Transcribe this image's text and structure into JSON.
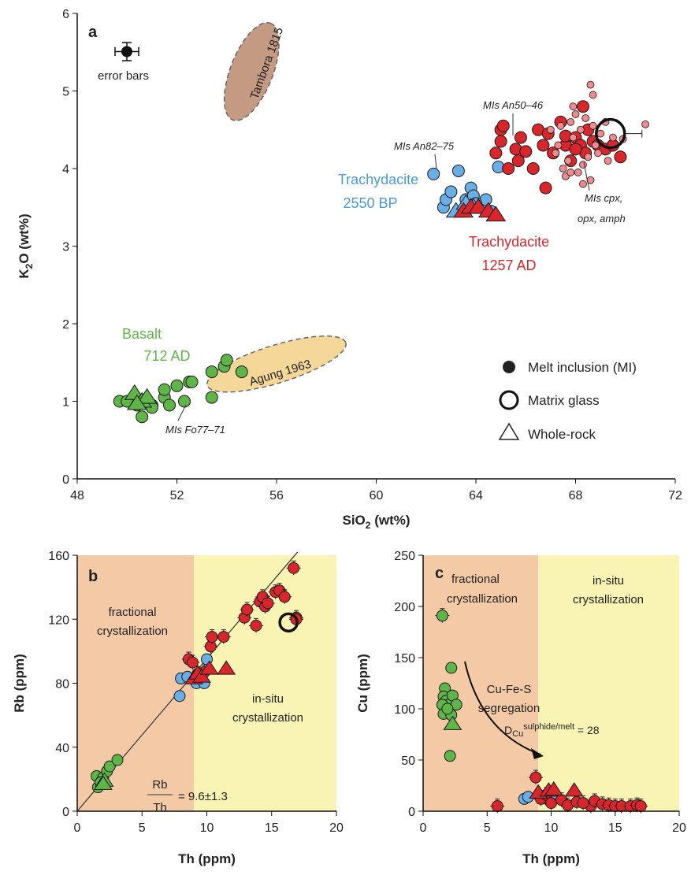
{
  "colors": {
    "basalt": "#5fb548",
    "trachy2550": "#6aaee6",
    "trachy1257": "#d8262c",
    "mi_cpx": "#ef8a8e",
    "tambora": "#c49a82",
    "agung": "#f5d79a",
    "fractional_bg": "#f4c9a6",
    "insitu_bg": "#f9f4b4"
  },
  "chart_data": [
    {
      "panel": "a",
      "type": "scatter",
      "xlabel": "SiO2 (wt%)",
      "ylabel": "K2O (wt%)",
      "xlim": [
        48,
        72
      ],
      "ylim": [
        0,
        6
      ],
      "xticks": [
        48,
        52,
        56,
        60,
        64,
        68,
        72
      ],
      "yticks": [
        0,
        1,
        2,
        3,
        4,
        5,
        6
      ],
      "panel_label": "a",
      "error_bars_label": "error bars",
      "field_labels": {
        "tambora": "Tambora 1815",
        "agung": "Agung 1963"
      },
      "group_labels": {
        "basalt_name": "Basalt",
        "basalt_age": "712 AD",
        "t2550_name": "Trachydacite",
        "t2550_age": "2550 BP",
        "t1257_name": "Trachydacite",
        "t1257_age": "1257 AD"
      },
      "annotations": {
        "mi_an50": "MIs An50–46",
        "mi_an82": "MIs An82–75",
        "mi_cpx1": "MIs cpx,",
        "mi_cpx2": "opx, amph",
        "mi_fo": "MIs Fo77–71"
      },
      "legend": [
        "Melt inclusion (MI)",
        "Matrix glass",
        "Whole-rock"
      ],
      "series": [
        {
          "name": "Basalt MI",
          "values": [
            [
              49.7,
              1.0
            ],
            [
              50.0,
              1.0
            ],
            [
              50.4,
              0.95
            ],
            [
              50.6,
              0.8
            ],
            [
              51.0,
              0.95
            ],
            [
              51.5,
              1.05
            ],
            [
              51.5,
              1.15
            ],
            [
              51.7,
              0.95
            ],
            [
              52.0,
              1.2
            ],
            [
              52.3,
              1.0
            ],
            [
              52.5,
              1.25
            ],
            [
              52.6,
              1.25
            ],
            [
              53.4,
              1.05
            ],
            [
              53.4,
              1.38
            ],
            [
              53.9,
              1.45
            ],
            [
              54.0,
              1.53
            ],
            [
              54.6,
              1.38
            ],
            [
              51.0,
              0.92
            ]
          ]
        },
        {
          "name": "Basalt WR",
          "values": [
            [
              50.3,
              1.1
            ],
            [
              50.6,
              1.0
            ],
            [
              50.8,
              1.05
            ],
            [
              50.4,
              0.97
            ]
          ]
        },
        {
          "name": "Trachydacite 2550 BP MI",
          "values": [
            [
              62.3,
              3.93
            ],
            [
              62.7,
              3.5
            ],
            [
              62.8,
              3.6
            ],
            [
              63.0,
              3.7
            ],
            [
              63.3,
              3.97
            ],
            [
              63.6,
              3.6
            ],
            [
              63.8,
              3.75
            ],
            [
              63.9,
              3.65
            ],
            [
              64.0,
              3.55
            ],
            [
              64.2,
              3.5
            ],
            [
              64.4,
              3.6
            ],
            [
              64.6,
              3.45
            ],
            [
              64.9,
              4.02
            ],
            [
              64.0,
              3.55
            ]
          ]
        },
        {
          "name": "Trachydacite 1257 AD MI",
          "values": [
            [
              64.8,
              4.2
            ],
            [
              65.0,
              4.5
            ],
            [
              65.0,
              4.35
            ],
            [
              65.1,
              4.55
            ],
            [
              65.3,
              4.0
            ],
            [
              65.6,
              4.25
            ],
            [
              65.7,
              4.1
            ],
            [
              65.8,
              4.4
            ],
            [
              66.0,
              4.22
            ],
            [
              66.3,
              4.0
            ],
            [
              66.5,
              4.5
            ],
            [
              66.7,
              4.3
            ],
            [
              66.9,
              4.45
            ],
            [
              66.8,
              3.75
            ],
            [
              67.1,
              4.2
            ],
            [
              67.4,
              4.6
            ],
            [
              67.6,
              4.3
            ],
            [
              67.8,
              4.1
            ],
            [
              68.0,
              4.4
            ],
            [
              68.2,
              4.3
            ],
            [
              68.4,
              4.2
            ],
            [
              68.5,
              4.5
            ],
            [
              68.7,
              4.35
            ],
            [
              68.9,
              4.3
            ],
            [
              69.2,
              4.25
            ],
            [
              69.5,
              4.3
            ],
            [
              69.8,
              4.15
            ],
            [
              68.3,
              4.8
            ],
            [
              67.6,
              4.42
            ],
            [
              68.0,
              4.25
            ]
          ]
        },
        {
          "name": "MIs cpx, opx, amph",
          "values": [
            [
              67.0,
              4.5
            ],
            [
              67.2,
              4.2
            ],
            [
              67.3,
              4.3
            ],
            [
              67.5,
              4.0
            ],
            [
              67.6,
              3.9
            ],
            [
              67.7,
              4.1
            ],
            [
              67.8,
              4.6
            ],
            [
              67.9,
              4.4
            ],
            [
              68.0,
              4.7
            ],
            [
              68.1,
              3.95
            ],
            [
              68.2,
              4.5
            ],
            [
              68.3,
              4.05
            ],
            [
              68.4,
              4.65
            ],
            [
              68.5,
              4.15
            ],
            [
              68.6,
              3.85
            ],
            [
              68.7,
              4.55
            ],
            [
              68.8,
              4.3
            ],
            [
              68.9,
              4.2
            ],
            [
              69.0,
              4.45
            ],
            [
              69.2,
              4.6
            ],
            [
              69.3,
              4.1
            ],
            [
              69.5,
              4.4
            ],
            [
              67.4,
              4.55
            ],
            [
              67.9,
              4.8
            ],
            [
              68.6,
              5.08
            ],
            [
              68.7,
              4.95
            ],
            [
              70.8,
              4.57
            ],
            [
              69.9,
              4.38
            ],
            [
              68.3,
              3.8
            ],
            [
              67.8,
              3.95
            ]
          ]
        },
        {
          "name": "Trachydacite 2550 BP WR",
          "values": [
            [
              63.2,
              3.45
            ],
            [
              63.6,
              3.55
            ],
            [
              63.9,
              3.5
            ]
          ]
        },
        {
          "name": "Trachydacite 1257 AD WR",
          "values": [
            [
              63.5,
              3.45
            ],
            [
              63.8,
              3.5
            ],
            [
              64.1,
              3.5
            ],
            [
              64.5,
              3.45
            ],
            [
              64.8,
              3.4
            ]
          ]
        },
        {
          "name": "Matrix glass",
          "values": [
            [
              69.4,
              4.45
            ]
          ]
        }
      ]
    },
    {
      "panel": "b",
      "type": "scatter",
      "xlabel": "Th (ppm)",
      "ylabel": "Rb (ppm)",
      "xlim": [
        0,
        20
      ],
      "ylim": [
        0,
        160
      ],
      "xticks": [
        0,
        5,
        10,
        15,
        20
      ],
      "yticks": [
        0,
        40,
        80,
        120,
        160
      ],
      "panel_label": "b",
      "region_split_x": 9,
      "labels": {
        "frac1": "fractional",
        "frac2": "crystallization",
        "insitu1": "in-situ",
        "insitu2": "crystallization",
        "ratio_num": "Rb",
        "ratio_den": "Th",
        "ratio_val": "= 9.6±1.3"
      },
      "fit_line": [
        [
          0,
          0
        ],
        [
          17,
          162
        ]
      ],
      "series": [
        {
          "name": "Basalt",
          "values": [
            [
              1.5,
              22
            ],
            [
              1.6,
              15
            ],
            [
              2.0,
              21
            ],
            [
              2.3,
              25
            ],
            [
              2.5,
              28
            ],
            [
              3.1,
              32
            ],
            [
              1.8,
              18
            ]
          ]
        },
        {
          "name": "Basalt WR",
          "values": [
            [
              2.1,
              19
            ],
            [
              2.0,
              17
            ]
          ]
        },
        {
          "name": "Trachydacite 2550 BP",
          "values": [
            [
              7.9,
              72
            ],
            [
              8.0,
              83
            ],
            [
              8.5,
              84
            ],
            [
              9.2,
              80
            ],
            [
              9.8,
              80
            ],
            [
              10.0,
              95
            ]
          ]
        },
        {
          "name": "Trachydacite 1257 AD",
          "values": [
            [
              8.6,
              95
            ],
            [
              8.9,
              93
            ],
            [
              9.3,
              86
            ],
            [
              9.8,
              87
            ],
            [
              10.3,
              103
            ],
            [
              10.4,
              109
            ],
            [
              11.3,
              109
            ],
            [
              12.9,
              121
            ],
            [
              13.1,
              126
            ],
            [
              13.8,
              116
            ],
            [
              14.1,
              131
            ],
            [
              14.3,
              134
            ],
            [
              14.5,
              128
            ],
            [
              14.7,
              130
            ],
            [
              15.3,
              137
            ],
            [
              15.6,
              138
            ],
            [
              16.0,
              134
            ],
            [
              16.7,
              152
            ],
            [
              16.9,
              121
            ],
            [
              16.9,
              120
            ]
          ]
        },
        {
          "name": "Trachydacite 1257 AD WR",
          "values": [
            [
              9.0,
              83
            ],
            [
              9.3,
              86
            ],
            [
              9.6,
              84
            ],
            [
              10.2,
              89
            ],
            [
              11.5,
              89
            ]
          ]
        },
        {
          "name": "Matrix glass",
          "values": [
            [
              16.3,
              118
            ]
          ]
        }
      ]
    },
    {
      "panel": "c",
      "type": "scatter",
      "xlabel": "Th (ppm)",
      "ylabel": "Cu (ppm)",
      "xlim": [
        0,
        20
      ],
      "ylim": [
        0,
        250
      ],
      "xticks": [
        0,
        5,
        10,
        15,
        20
      ],
      "yticks": [
        0,
        50,
        100,
        150,
        200,
        250
      ],
      "panel_label": "c",
      "region_split_x": 9,
      "labels": {
        "frac1": "fractional",
        "frac2": "crystallization",
        "insitu1": "in-situ",
        "insitu2": "crystallization",
        "seg1": "Cu-Fe-S",
        "seg2": "segregation",
        "dcu_pre": "D",
        "dcu_sub": "Cu",
        "dcu_sup": "sulphide/melt",
        "dcu_val": " = 28"
      },
      "series": [
        {
          "name": "Basalt",
          "values": [
            [
              1.5,
              191
            ],
            [
              2.2,
              140
            ],
            [
              1.7,
              120
            ],
            [
              1.6,
              112
            ],
            [
              1.8,
              108
            ],
            [
              2.0,
              104
            ],
            [
              1.5,
              104
            ],
            [
              2.3,
              113
            ],
            [
              2.6,
              104
            ],
            [
              1.6,
              95
            ],
            [
              2.2,
              94
            ],
            [
              2.1,
              54
            ],
            [
              1.9,
              100
            ]
          ]
        },
        {
          "name": "Basalt WR",
          "values": [
            [
              2.3,
              85
            ]
          ]
        },
        {
          "name": "Trachydacite 2550 BP",
          "values": [
            [
              7.9,
              12
            ],
            [
              8.2,
              14
            ],
            [
              9.5,
              15
            ],
            [
              9.8,
              11
            ],
            [
              10.2,
              13
            ]
          ]
        },
        {
          "name": "Trachydacite 1257 AD",
          "values": [
            [
              5.8,
              5
            ],
            [
              8.8,
              33
            ],
            [
              9.2,
              12
            ],
            [
              9.6,
              16
            ],
            [
              10.0,
              8
            ],
            [
              10.8,
              11
            ],
            [
              11.3,
              6
            ],
            [
              12.0,
              9
            ],
            [
              13.1,
              5
            ],
            [
              13.4,
              10
            ],
            [
              14.0,
              7
            ],
            [
              14.5,
              6
            ],
            [
              15.0,
              5
            ],
            [
              15.5,
              5
            ],
            [
              16.2,
              5
            ],
            [
              16.7,
              6
            ],
            [
              17.0,
              5
            ],
            [
              12.5,
              8
            ]
          ]
        },
        {
          "name": "Trachydacite 1257 AD WR",
          "values": [
            [
              9.0,
              18
            ],
            [
              9.8,
              20
            ],
            [
              10.2,
              21
            ],
            [
              11.8,
              20
            ]
          ]
        }
      ]
    }
  ]
}
